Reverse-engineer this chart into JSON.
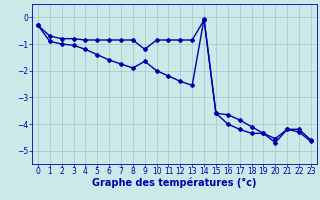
{
  "line1_x": [
    0,
    1,
    2,
    3,
    4,
    5,
    6,
    7,
    8,
    9,
    10,
    11,
    12,
    13,
    14,
    15,
    16,
    17,
    18,
    19,
    20,
    21,
    22,
    23
  ],
  "line1_y": [
    -0.3,
    -0.7,
    -0.8,
    -0.8,
    -0.85,
    -0.85,
    -0.85,
    -0.85,
    -0.85,
    -1.2,
    -0.85,
    -0.85,
    -0.85,
    -0.85,
    -0.1,
    -3.6,
    -4.0,
    -4.2,
    -4.35,
    -4.35,
    -4.55,
    -4.2,
    -4.2,
    -4.6
  ],
  "line2_x": [
    0,
    1,
    2,
    3,
    4,
    5,
    6,
    7,
    8,
    9,
    10,
    11,
    12,
    13,
    14,
    15,
    16,
    17,
    18,
    19,
    20,
    21,
    22,
    23
  ],
  "line2_y": [
    -0.3,
    -0.9,
    -1.0,
    -1.05,
    -1.2,
    -1.4,
    -1.6,
    -1.75,
    -1.9,
    -1.65,
    -2.0,
    -2.2,
    -2.4,
    -2.55,
    -0.05,
    -3.6,
    -3.65,
    -3.85,
    -4.1,
    -4.35,
    -4.7,
    -4.2,
    -4.3,
    -4.65
  ],
  "line_color": "#0000aa",
  "background_color": "#cce8e8",
  "grid_color": "#a8cccc",
  "xlabel": "Graphe des températures (°c)",
  "xlim": [
    -0.5,
    23.5
  ],
  "ylim": [
    -5.5,
    0.5
  ],
  "yticks": [
    0,
    -1,
    -2,
    -3,
    -4,
    -5
  ],
  "xticks": [
    0,
    1,
    2,
    3,
    4,
    5,
    6,
    7,
    8,
    9,
    10,
    11,
    12,
    13,
    14,
    15,
    16,
    17,
    18,
    19,
    20,
    21,
    22,
    23
  ],
  "xlabel_fontsize": 7,
  "tick_fontsize": 5.5,
  "line_width": 1.0,
  "marker": "D",
  "marker_size": 2.0
}
